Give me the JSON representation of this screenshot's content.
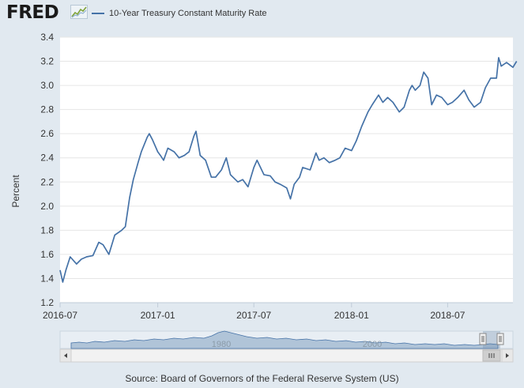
{
  "header": {
    "logo_text": "FRED",
    "legend_label": "10-Year Treasury Constant Maturity Rate",
    "series_color": "#4572a7",
    "logo_icon": "trend-chart-icon"
  },
  "navigator": {
    "labels": [
      "1980",
      "2000"
    ],
    "scroll_icon": "grip-icon",
    "left_arrow_icon": "scroll-left-arrow-icon",
    "right_arrow_icon": "scroll-right-arrow-icon"
  },
  "source": "Source: Board of Governors of the Federal Reserve System (US)",
  "chart_data": {
    "type": "line",
    "title": "",
    "xlabel": "",
    "ylabel": "Percent",
    "ylim": [
      1.2,
      3.4
    ],
    "yticks": [
      "1.2",
      "1.4",
      "1.6",
      "1.8",
      "2.0",
      "2.2",
      "2.4",
      "2.6",
      "2.8",
      "3.0",
      "3.2",
      "3.4"
    ],
    "xlim": [
      "2016-07",
      "2018-11"
    ],
    "xticks": [
      "2016-07",
      "2017-01",
      "2017-07",
      "2018-01",
      "2018-07"
    ],
    "grid": true,
    "legend": "top-left",
    "series": [
      {
        "name": "10-Year Treasury Constant Maturity Rate",
        "color": "#4572a7",
        "x": [
          "2016-07-01",
          "2016-07-06",
          "2016-07-12",
          "2016-07-20",
          "2016-08-01",
          "2016-08-10",
          "2016-08-20",
          "2016-09-01",
          "2016-09-12",
          "2016-09-20",
          "2016-10-01",
          "2016-10-12",
          "2016-10-25",
          "2016-11-01",
          "2016-11-09",
          "2016-11-16",
          "2016-11-25",
          "2016-12-01",
          "2016-12-12",
          "2016-12-16",
          "2016-12-22",
          "2017-01-01",
          "2017-01-06",
          "2017-01-12",
          "2017-01-20",
          "2017-02-01",
          "2017-02-10",
          "2017-02-20",
          "2017-03-01",
          "2017-03-10",
          "2017-03-14",
          "2017-03-22",
          "2017-04-01",
          "2017-04-12",
          "2017-04-20",
          "2017-05-01",
          "2017-05-10",
          "2017-05-18",
          "2017-06-01",
          "2017-06-10",
          "2017-06-20",
          "2017-07-01",
          "2017-07-07",
          "2017-07-20",
          "2017-08-01",
          "2017-08-10",
          "2017-08-20",
          "2017-09-01",
          "2017-09-08",
          "2017-09-15",
          "2017-09-25",
          "2017-10-01",
          "2017-10-15",
          "2017-10-26",
          "2017-11-01",
          "2017-11-10",
          "2017-11-20",
          "2017-12-01",
          "2017-12-10",
          "2017-12-20",
          "2018-01-01",
          "2018-01-10",
          "2018-01-20",
          "2018-02-01",
          "2018-02-09",
          "2018-02-21",
          "2018-03-01",
          "2018-03-10",
          "2018-03-20",
          "2018-04-01",
          "2018-04-10",
          "2018-04-20",
          "2018-04-25",
          "2018-05-01",
          "2018-05-10",
          "2018-05-17",
          "2018-05-25",
          "2018-06-01",
          "2018-06-10",
          "2018-06-20",
          "2018-07-01",
          "2018-07-10",
          "2018-07-20",
          "2018-08-01",
          "2018-08-10",
          "2018-08-20",
          "2018-09-01",
          "2018-09-10",
          "2018-09-20",
          "2018-10-01",
          "2018-10-05",
          "2018-10-10",
          "2018-10-20",
          "2018-11-01",
          "2018-11-08"
        ],
        "values": [
          1.47,
          1.37,
          1.47,
          1.58,
          1.52,
          1.56,
          1.58,
          1.59,
          1.7,
          1.68,
          1.6,
          1.76,
          1.8,
          1.83,
          2.07,
          2.22,
          2.36,
          2.45,
          2.57,
          2.6,
          2.55,
          2.45,
          2.42,
          2.38,
          2.48,
          2.45,
          2.4,
          2.42,
          2.45,
          2.58,
          2.62,
          2.42,
          2.38,
          2.24,
          2.24,
          2.3,
          2.4,
          2.26,
          2.2,
          2.22,
          2.16,
          2.32,
          2.38,
          2.26,
          2.25,
          2.2,
          2.18,
          2.15,
          2.06,
          2.18,
          2.24,
          2.32,
          2.3,
          2.44,
          2.38,
          2.4,
          2.36,
          2.38,
          2.4,
          2.48,
          2.46,
          2.54,
          2.66,
          2.78,
          2.84,
          2.92,
          2.86,
          2.9,
          2.86,
          2.78,
          2.82,
          2.96,
          3.0,
          2.96,
          3.0,
          3.11,
          3.06,
          2.84,
          2.92,
          2.9,
          2.84,
          2.86,
          2.9,
          2.96,
          2.88,
          2.82,
          2.86,
          2.98,
          3.06,
          3.06,
          3.23,
          3.16,
          3.19,
          3.15,
          3.2
        ]
      }
    ]
  }
}
